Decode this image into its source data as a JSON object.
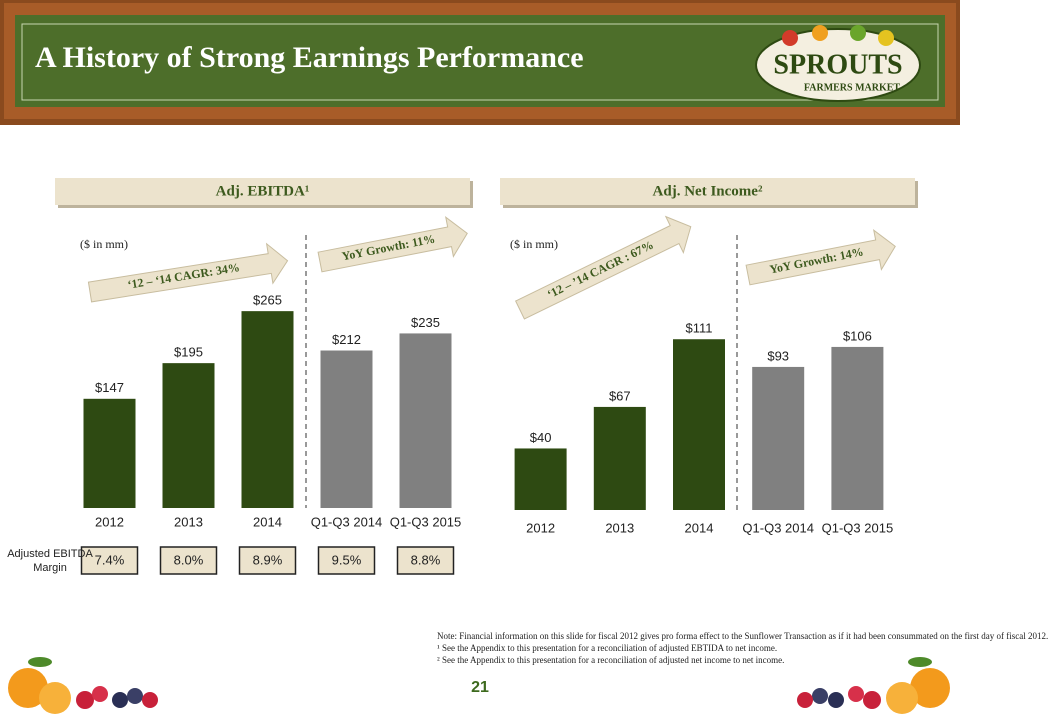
{
  "header": {
    "title": "A History of Strong Earnings Performance",
    "logo": "SPROUTS",
    "logo_sub": "FARMERS MARKET"
  },
  "chart_data": [
    {
      "type": "bar",
      "title": "Adj. EBITDA¹",
      "unit_note": "($ in mm)",
      "categories": [
        "2012",
        "2013",
        "2014",
        "Q1-Q3 2014",
        "Q1-Q3 2015"
      ],
      "values": [
        147,
        195,
        265,
        212,
        235
      ],
      "value_labels": [
        "$147",
        "$195",
        "$265",
        "$212",
        "$235"
      ],
      "colors": [
        "#2e4a12",
        "#2e4a12",
        "#2e4a12",
        "#808080",
        "#808080"
      ],
      "ylim": [
        0,
        280
      ],
      "annotations": [
        "‘12 – ‘14 CAGR: 34%",
        "YoY Growth: 11%"
      ]
    },
    {
      "type": "bar",
      "title": "Adj. Net Income²",
      "unit_note": "($ in mm)",
      "categories": [
        "2012",
        "2013",
        "2014",
        "Q1-Q3 2014",
        "Q1-Q3 2015"
      ],
      "values": [
        40,
        67,
        111,
        93,
        106
      ],
      "value_labels": [
        "$40",
        "$67",
        "$111",
        "$93",
        "$106"
      ],
      "colors": [
        "#2e4a12",
        "#2e4a12",
        "#2e4a12",
        "#808080",
        "#808080"
      ],
      "ylim": [
        0,
        130
      ],
      "annotations": [
        "‘12 – ’14 CAGR : 67%",
        "YoY Growth: 14%"
      ]
    }
  ],
  "margins": {
    "label": "Adjusted EBITDA Margin",
    "cells": [
      "7.4%",
      "8.0%",
      "8.9%",
      "9.5%",
      "8.8%"
    ]
  },
  "notes": [
    "Note:  Financial information on this slide for fiscal 2012 gives pro forma effect to the Sunflower Transaction as if it had been consummated on the first day of fiscal 2012.",
    "¹ See the Appendix to this presentation for a reconciliation of adjusted EBTIDA to net income.",
    "² See the Appendix to this presentation for a reconciliation of adjusted net income to net income."
  ],
  "page_number": "21"
}
